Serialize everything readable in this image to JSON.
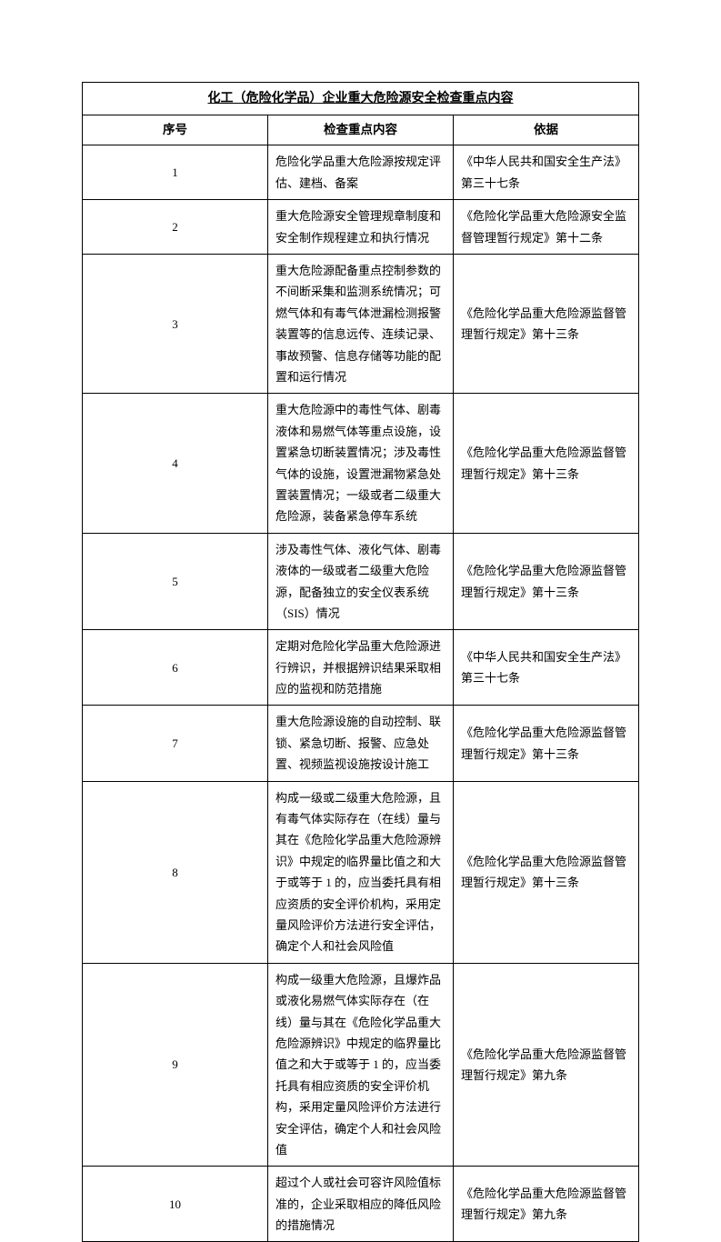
{
  "table": {
    "title": "化工（危险化学品）企业重大危险源安全检查重点内容",
    "headers": {
      "seq": "序号",
      "content": "检查重点内容",
      "basis": "依据"
    },
    "rows": [
      {
        "seq": "1",
        "content": "危险化学品重大危险源按规定评估、建档、备案",
        "basis": "《中华人民共和国安全生产法》第三十七条"
      },
      {
        "seq": "2",
        "content": "重大危险源安全管理规章制度和安全制作规程建立和执行情况",
        "basis": "《危险化学品重大危险源安全监督管理暂行规定》第十二条"
      },
      {
        "seq": "3",
        "content": "重大危险源配备重点控制参数的不间断采集和监测系统情况；可燃气体和有毒气体泄漏检测报警装置等的信息远传、连续记录、事故预警、信息存储等功能的配置和运行情况",
        "basis": "《危险化学品重大危险源监督管理暂行规定》第十三条"
      },
      {
        "seq": "4",
        "content": "重大危险源中的毒性气体、剧毒液体和易燃气体等重点设施，设置紧急切断装置情况；涉及毒性气体的设施，设置泄漏物紧急处置装置情况；一级或者二级重大危险源，装备紧急停车系统",
        "basis": "《危险化学品重大危险源监督管理暂行规定》第十三条"
      },
      {
        "seq": "5",
        "content": "涉及毒性气体、液化气体、剧毒液体的一级或者二级重大危险源，配备独立的安全仪表系统（SIS）情况",
        "basis": "《危险化学品重大危险源监督管理暂行规定》第十三条"
      },
      {
        "seq": "6",
        "content": "定期对危险化学品重大危险源进行辨识，并根据辨识结果采取相应的监视和防范措施",
        "basis": "《中华人民共和国安全生产法》第三十七条"
      },
      {
        "seq": "7",
        "content": "重大危险源设施的自动控制、联锁、紧急切断、报警、应急处置、视频监视设施按设计施工",
        "basis": "《危险化学品重大危险源监督管理暂行规定》第十三条"
      },
      {
        "seq": "8",
        "content": "构成一级或二级重大危险源，且有毒气体实际存在（在线）量与其在《危险化学品重大危险源辨识》中规定的临界量比值之和大于或等于 1 的，应当委托具有相应资质的安全评价机构，采用定量风险评价方法进行安全评估，确定个人和社会风险值",
        "basis": "《危险化学品重大危险源监督管理暂行规定》第十三条"
      },
      {
        "seq": "9",
        "content": "构成一级重大危险源，且爆炸品或液化易燃气体实际存在（在线）量与其在《危险化学品重大危险源辨识》中规定的临界量比值之和大于或等于 1 的，应当委托具有相应资质的安全评价机构，采用定量风险评价方法进行安全评估，确定个人和社会风险值",
        "basis": "《危险化学品重大危险源监督管理暂行规定》第九条"
      },
      {
        "seq": "10",
        "content": "超过个人或社会可容许风险值标准的，企业采取相应的降低风险的措施情况",
        "basis": "《危险化学品重大危险源监督管理暂行规定》第九条"
      }
    ]
  }
}
